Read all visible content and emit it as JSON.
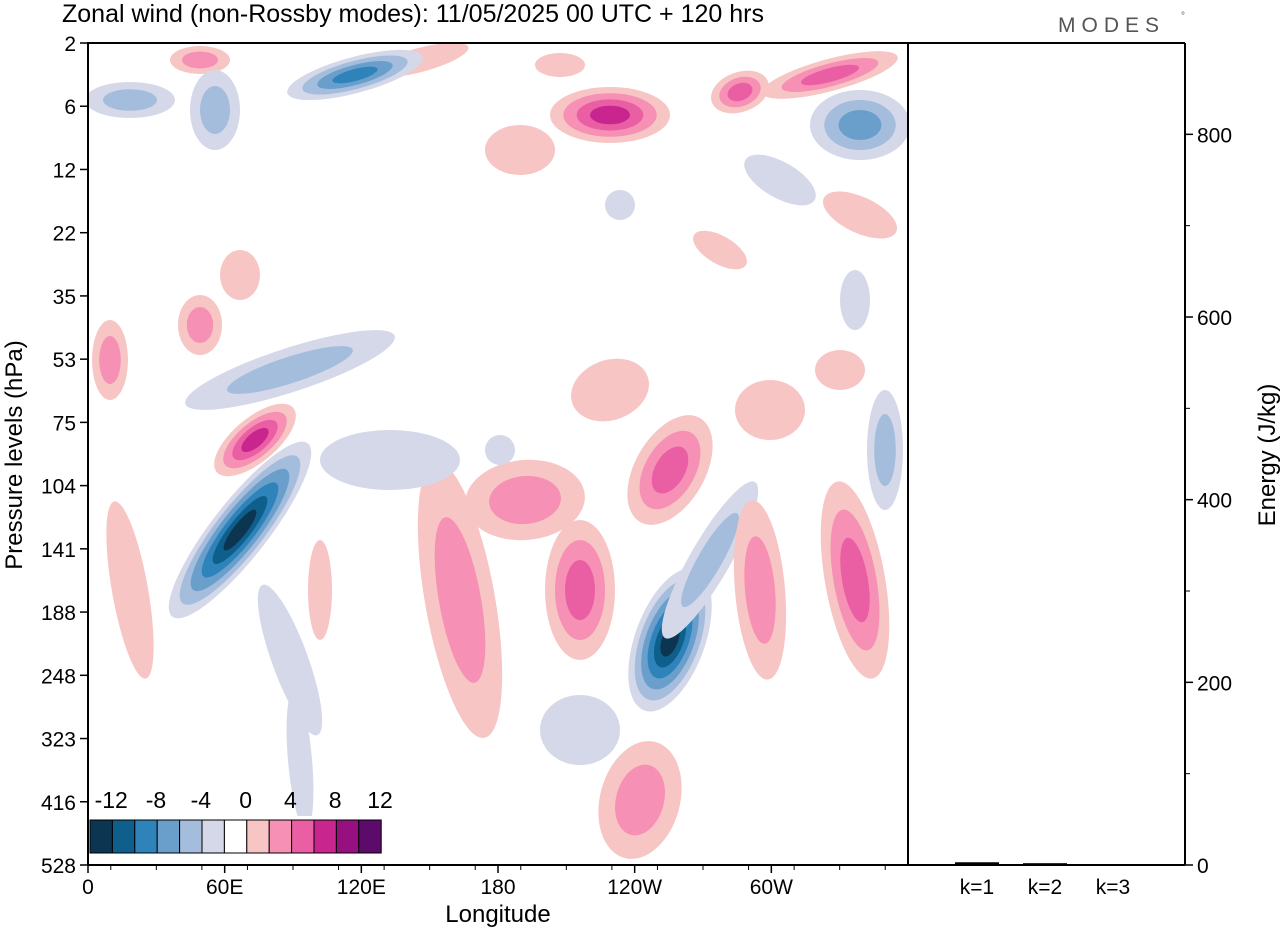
{
  "title": "Zonal wind (non-Rossby modes):  11/05/2025  00 UTC  + 120 hrs",
  "logo": "MODES",
  "logo_mark": "°",
  "main_plot": {
    "xlabel": "Longitude",
    "ylabel": "Pressure levels (hPa)",
    "x_ticks": [
      "0",
      "60E",
      "120E",
      "180",
      "120W",
      "60W"
    ],
    "y_ticks": [
      "2",
      "6",
      "12",
      "22",
      "35",
      "53",
      "75",
      "104",
      "141",
      "188",
      "248",
      "323",
      "416",
      "528"
    ]
  },
  "colorbar": {
    "tick_labels": [
      "-12",
      "-8",
      "-4",
      "0",
      "4",
      "8",
      "12"
    ],
    "colors": [
      "#0c3551",
      "#0e5f8c",
      "#2f83bb",
      "#6a9fcc",
      "#a4bddc",
      "#d4d8e9",
      "#ffffff",
      "#f8c5c5",
      "#f690b4",
      "#ea5fa4",
      "#c8258e",
      "#97107f",
      "#5d0b6b"
    ]
  },
  "chart_data": [
    {
      "type": "heatmap",
      "xlabel": "Longitude",
      "ylabel": "Pressure levels (hPa)",
      "x_ticks": [
        "0",
        "60E",
        "120E",
        "180",
        "120W",
        "60W"
      ],
      "y_levels_hPa": [
        2,
        6,
        12,
        22,
        35,
        53,
        75,
        104,
        141,
        188,
        248,
        323,
        416,
        528
      ],
      "value_range": [
        -12,
        12
      ],
      "contour_interval": 2,
      "colors": {
        "negative_strong": "#0c3551",
        "negative_weak": "#d4d8e9",
        "zero": "#ffffff",
        "positive_weak": "#f8c5c5",
        "positive_strong": "#5d0b6b"
      },
      "features": [
        {
          "lon": 75,
          "p_hPa": 141,
          "value": -12
        },
        {
          "lon": 255,
          "p_hPa": 210,
          "value": -12
        },
        {
          "lon": 72,
          "p_hPa": 90,
          "value": 8
        },
        {
          "lon": 225,
          "p_hPa": 6,
          "value": 8
        },
        {
          "lon": 285,
          "p_hPa": 5,
          "value": 10
        },
        {
          "lon": 225,
          "p_hPa": 150,
          "value": 6
        },
        {
          "lon": 255,
          "p_hPa": 110,
          "value": 6
        },
        {
          "lon": 338,
          "p_hPa": 150,
          "value": 6
        },
        {
          "lon": 115,
          "p_hPa": 4,
          "value": -8
        },
        {
          "lon": 55,
          "p_hPa": 6,
          "value": -4
        },
        {
          "lon": 355,
          "p_hPa": 8,
          "value": -6
        },
        {
          "lon": 70,
          "p_hPa": 55,
          "value": -4
        },
        {
          "lon": 355,
          "p_hPa": 95,
          "value": -6
        }
      ]
    },
    {
      "type": "bar",
      "ylabel": "Energy (J/kg)",
      "categories": [
        "k=1",
        "k=2",
        "k=3"
      ],
      "values": [
        3,
        2,
        1
      ],
      "ylim": [
        0,
        900
      ],
      "y_ticks": [
        0,
        200,
        400,
        600,
        800
      ]
    }
  ]
}
